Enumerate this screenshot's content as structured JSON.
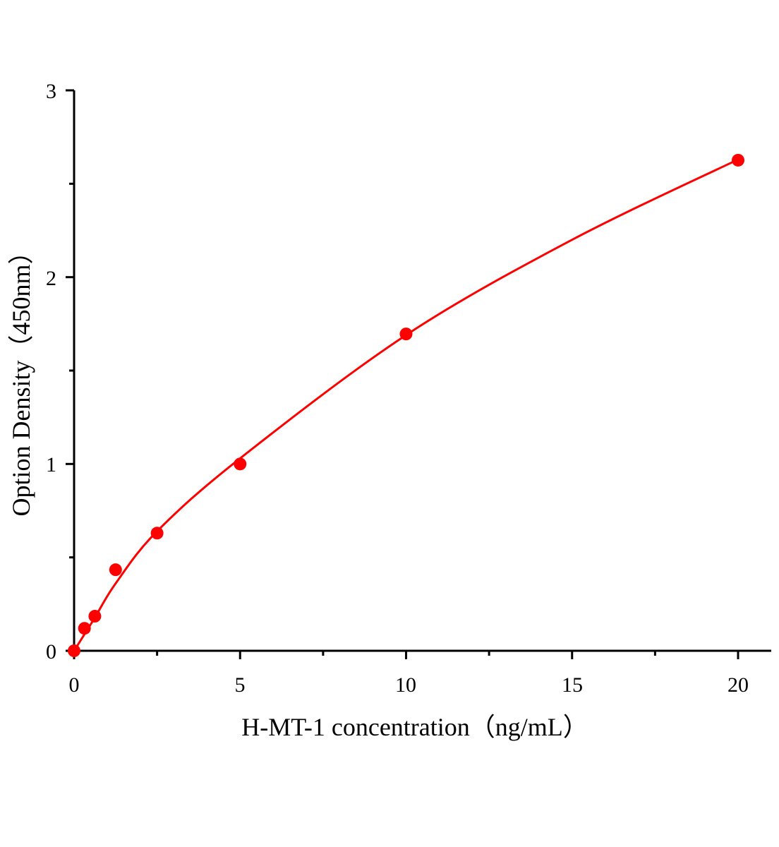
{
  "chart_data": {
    "type": "scatter",
    "title": "",
    "xlabel": "H-MT-1 concentration（ng/mL）",
    "ylabel": "Option Density（450nm）",
    "xlim": [
      0,
      21
    ],
    "ylim": [
      0,
      3
    ],
    "xticks": [
      "0",
      "5",
      "10",
      "15",
      "20"
    ],
    "yticks": [
      "0",
      "1",
      "2",
      "3"
    ],
    "grid": false,
    "legend": "none",
    "series": [
      {
        "x": [
          0,
          0.3125,
          0.625,
          1.25,
          2.5,
          5,
          10,
          20
        ],
        "y": [
          0,
          0.12,
          0.185,
          0.434,
          0.63,
          1.0,
          1.696,
          2.626
        ],
        "color": "#ff0000",
        "fit_curve": true
      }
    ]
  }
}
